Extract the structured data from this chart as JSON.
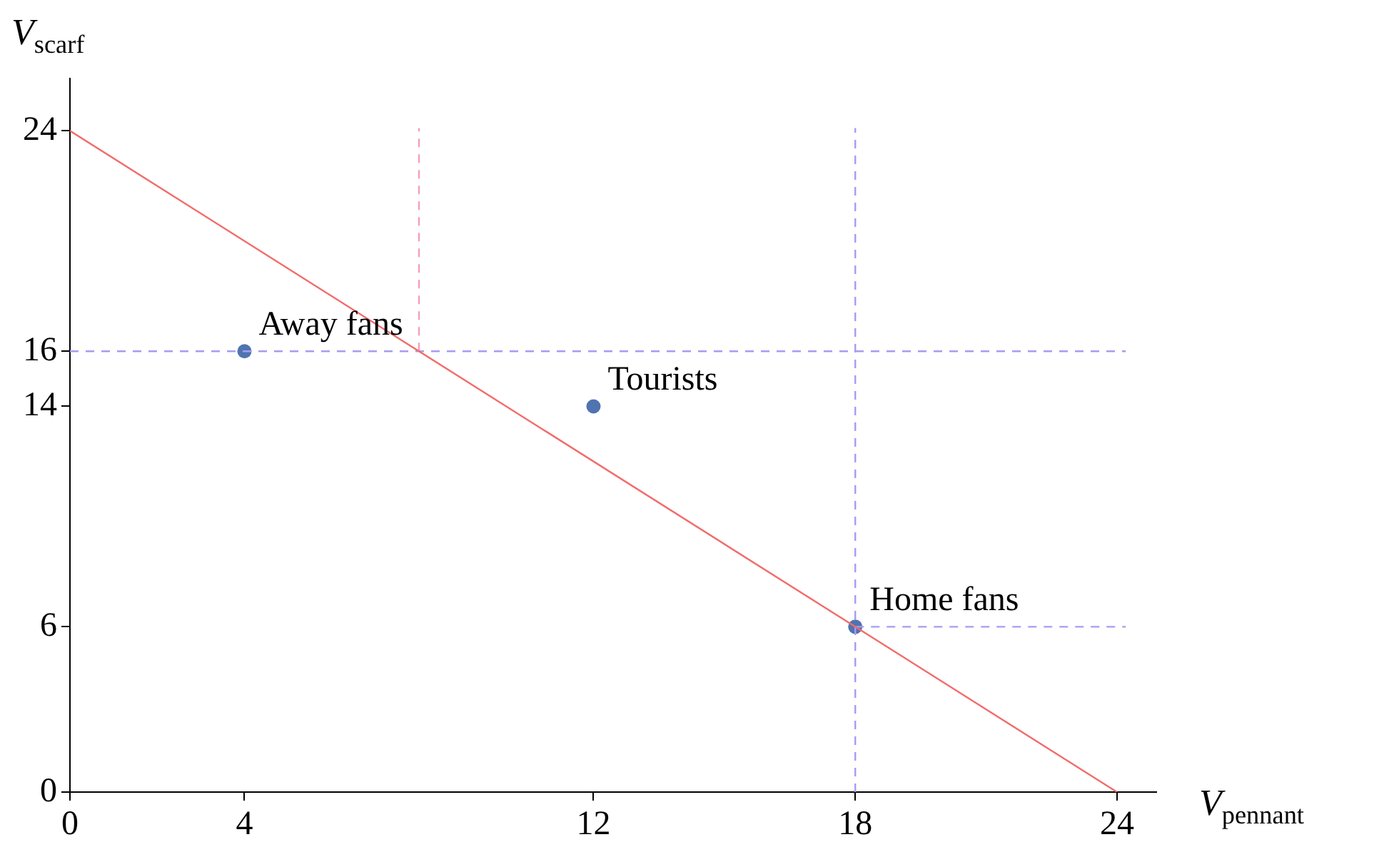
{
  "chart_data": {
    "type": "scatter",
    "xlabel": "V$_{pennant}$",
    "ylabel": "V$_{scarf}$",
    "xlim": [
      0,
      24.9
    ],
    "ylim": [
      0,
      25.9
    ],
    "xticks": [
      0,
      4,
      12,
      18,
      24
    ],
    "yticks": [
      0,
      6,
      14,
      16,
      24
    ],
    "grid": false,
    "legend": false,
    "series": [
      {
        "type": "line",
        "color": "#f26b6b",
        "x": [
          0,
          24
        ],
        "values": [
          24,
          0
        ],
        "line_style": "solid",
        "marker": "none"
      },
      {
        "type": "line",
        "color": "#f4a0b4",
        "x": [
          8,
          8
        ],
        "values": [
          16,
          24.1
        ],
        "line_style": "dashed",
        "marker": "none"
      },
      {
        "type": "line",
        "color": "#a89cf0",
        "x": [
          0,
          24.2
        ],
        "values": [
          16,
          16
        ],
        "line_style": "dashed",
        "marker": "none"
      },
      {
        "type": "line",
        "color": "#a89cf0",
        "x": [
          18,
          18
        ],
        "values": [
          0,
          24.1
        ],
        "line_style": "dashed",
        "marker": "none"
      },
      {
        "type": "line",
        "color": "#a89cf0",
        "x": [
          18,
          24.2
        ],
        "values": [
          6,
          6
        ],
        "line_style": "dashed",
        "marker": "none"
      },
      {
        "color": "#4f74b0",
        "x": [
          4,
          12,
          18
        ],
        "values": [
          16,
          14,
          6
        ],
        "marker": "circle"
      }
    ],
    "annotations": [
      {
        "text": "Away fans",
        "x": 4,
        "y": 16
      },
      {
        "text": "Tourists",
        "x": 12,
        "y": 14
      },
      {
        "text": "Home fans",
        "x": 18,
        "y": 6
      }
    ]
  }
}
